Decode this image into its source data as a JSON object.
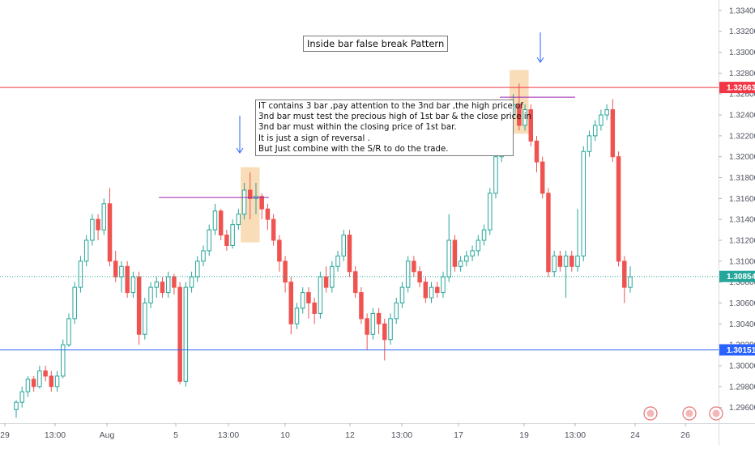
{
  "chart_data": {
    "type": "candlestick",
    "title": "Inside bar false break Pattern",
    "annotation_lines": [
      "IT contains 3 bar ,pay attention to the 3nd bar ,the high price of",
      "3nd bar must test the precious high of 1st bar & the close price in",
      "3nd bar must within the closing price of 1st bar.",
      "It is just a sign of reversal .",
      "But Just combine with the S/R to do the trade."
    ],
    "ylim": [
      1.2945,
      1.335
    ],
    "y_ticks": [
      "1.33400",
      "1.33200",
      "1.33000",
      "1.32800",
      "1.32600",
      "1.32400",
      "1.32200",
      "1.32000",
      "1.31800",
      "1.31600",
      "1.31400",
      "1.31200",
      "1.31000",
      "1.30800",
      "1.30600",
      "1.30400",
      "1.30200",
      "1.30000",
      "1.29800",
      "1.29600"
    ],
    "x_ticks": [
      "29",
      "13:00",
      "Aug",
      "5",
      "13:00",
      "10",
      "12",
      "13:00",
      "17",
      "19",
      "13:00",
      "24",
      "26"
    ],
    "price_levels": [
      {
        "label": "1.32663",
        "value": 1.32663,
        "color": "#f23645"
      },
      {
        "label": "1.30854",
        "value": 1.30854,
        "color": "#26a69a",
        "dotted": true
      },
      {
        "label": "1.30151",
        "value": 1.30151,
        "color": "#2962ff"
      }
    ],
    "colors": {
      "up": "#26a69a",
      "down": "#ef5350",
      "highlight": "#f7d9b0",
      "pattern_line": "#9c27b0",
      "arrow": "#2962ff"
    },
    "candles": [
      [
        1.2958,
        1.2965,
        1.295,
        1.2967
      ],
      [
        1.2965,
        1.2975,
        1.296,
        1.298
      ],
      [
        1.2975,
        1.2987,
        1.297,
        1.299
      ],
      [
        1.2987,
        1.298,
        1.2975,
        1.299
      ],
      [
        1.298,
        1.2995,
        1.2978,
        1.3
      ],
      [
        1.2995,
        1.299,
        1.2985,
        1.3
      ],
      [
        1.299,
        1.298,
        1.2975,
        1.2995
      ],
      [
        1.298,
        1.299,
        1.2975,
        1.2995
      ],
      [
        1.299,
        1.302,
        1.2988,
        1.3025
      ],
      [
        1.302,
        1.3045,
        1.3018,
        1.305
      ],
      [
        1.3045,
        1.3075,
        1.304,
        1.308
      ],
      [
        1.3075,
        1.31,
        1.307,
        1.3105
      ],
      [
        1.31,
        1.312,
        1.3095,
        1.3125
      ],
      [
        1.312,
        1.314,
        1.3115,
        1.3145
      ],
      [
        1.314,
        1.313,
        1.312,
        1.3145
      ],
      [
        1.313,
        1.3155,
        1.3125,
        1.316
      ],
      [
        1.3155,
        1.31,
        1.3095,
        1.317
      ],
      [
        1.31,
        1.3085,
        1.308,
        1.311
      ],
      [
        1.3085,
        1.3095,
        1.307,
        1.31
      ],
      [
        1.3095,
        1.307,
        1.3065,
        1.31
      ],
      [
        1.307,
        1.3085,
        1.3065,
        1.309
      ],
      [
        1.3085,
        1.303,
        1.302,
        1.309
      ],
      [
        1.303,
        1.306,
        1.3025,
        1.3065
      ],
      [
        1.306,
        1.3075,
        1.3055,
        1.308
      ],
      [
        1.3075,
        1.308,
        1.3065,
        1.3085
      ],
      [
        1.308,
        1.307,
        1.3065,
        1.3085
      ],
      [
        1.307,
        1.3085,
        1.3065,
        1.309
      ],
      [
        1.3085,
        1.3075,
        1.3068,
        1.3088
      ],
      [
        1.3075,
        1.2985,
        1.2982,
        1.308
      ],
      [
        1.2985,
        1.3075,
        1.298,
        1.308
      ],
      [
        1.3075,
        1.3085,
        1.307,
        1.309
      ],
      [
        1.3085,
        1.31,
        1.308,
        1.3105
      ],
      [
        1.31,
        1.311,
        1.3095,
        1.3115
      ],
      [
        1.311,
        1.313,
        1.3105,
        1.3135
      ],
      [
        1.313,
        1.3148,
        1.3125,
        1.3155
      ],
      [
        1.3148,
        1.3125,
        1.312,
        1.315
      ],
      [
        1.3125,
        1.3115,
        1.311,
        1.313
      ],
      [
        1.3115,
        1.3135,
        1.3112,
        1.314
      ],
      [
        1.3135,
        1.3145,
        1.313,
        1.315
      ],
      [
        1.3145,
        1.3168,
        1.314,
        1.3175
      ],
      [
        1.3168,
        1.316,
        1.314,
        1.3185
      ],
      [
        1.316,
        1.3162,
        1.3145,
        1.3175
      ],
      [
        1.3162,
        1.315,
        1.314,
        1.3165
      ],
      [
        1.315,
        1.314,
        1.313,
        1.3155
      ],
      [
        1.314,
        1.312,
        1.3115,
        1.3145
      ],
      [
        1.312,
        1.31,
        1.309,
        1.3125
      ],
      [
        1.31,
        1.308,
        1.307,
        1.3105
      ],
      [
        1.308,
        1.304,
        1.303,
        1.3085
      ],
      [
        1.304,
        1.3055,
        1.3035,
        1.306
      ],
      [
        1.3055,
        1.307,
        1.305,
        1.3075
      ],
      [
        1.307,
        1.306,
        1.3045,
        1.3075
      ],
      [
        1.306,
        1.305,
        1.304,
        1.3065
      ],
      [
        1.305,
        1.3085,
        1.3045,
        1.309
      ],
      [
        1.3085,
        1.3075,
        1.307,
        1.3095
      ],
      [
        1.3075,
        1.3095,
        1.307,
        1.31
      ],
      [
        1.3095,
        1.3105,
        1.309,
        1.311
      ],
      [
        1.3105,
        1.3125,
        1.31,
        1.313
      ],
      [
        1.3125,
        1.309,
        1.3085,
        1.313
      ],
      [
        1.309,
        1.307,
        1.3065,
        1.3095
      ],
      [
        1.307,
        1.3045,
        1.304,
        1.3075
      ],
      [
        1.3045,
        1.303,
        1.3015,
        1.305
      ],
      [
        1.303,
        1.305,
        1.3025,
        1.3055
      ],
      [
        1.305,
        1.304,
        1.303,
        1.3055
      ],
      [
        1.304,
        1.3025,
        1.3005,
        1.3045
      ],
      [
        1.3025,
        1.3045,
        1.302,
        1.305
      ],
      [
        1.3045,
        1.306,
        1.304,
        1.3065
      ],
      [
        1.306,
        1.3075,
        1.3055,
        1.308
      ],
      [
        1.3075,
        1.31,
        1.307,
        1.3105
      ],
      [
        1.31,
        1.309,
        1.3085,
        1.3105
      ],
      [
        1.309,
        1.308,
        1.3075,
        1.3095
      ],
      [
        1.308,
        1.3065,
        1.306,
        1.3085
      ],
      [
        1.3065,
        1.3075,
        1.306,
        1.308
      ],
      [
        1.3075,
        1.307,
        1.3065,
        1.308
      ],
      [
        1.307,
        1.3085,
        1.3065,
        1.309
      ],
      [
        1.3085,
        1.312,
        1.308,
        1.3145
      ],
      [
        1.312,
        1.3095,
        1.309,
        1.3125
      ],
      [
        1.3095,
        1.31,
        1.309,
        1.3105
      ],
      [
        1.31,
        1.3105,
        1.3095,
        1.311
      ],
      [
        1.3105,
        1.311,
        1.31,
        1.3115
      ],
      [
        1.311,
        1.312,
        1.3105,
        1.3125
      ],
      [
        1.312,
        1.313,
        1.3115,
        1.3135
      ],
      [
        1.313,
        1.3165,
        1.3125,
        1.317
      ],
      [
        1.3165,
        1.32,
        1.316,
        1.3205
      ],
      [
        1.32,
        1.3215,
        1.3195,
        1.322
      ],
      [
        1.3215,
        1.324,
        1.321,
        1.3245
      ],
      [
        1.324,
        1.325,
        1.3235,
        1.326
      ],
      [
        1.325,
        1.323,
        1.3225,
        1.327
      ],
      [
        1.323,
        1.3245,
        1.3225,
        1.325
      ],
      [
        1.3245,
        1.3215,
        1.321,
        1.325
      ],
      [
        1.3215,
        1.3195,
        1.3185,
        1.322
      ],
      [
        1.3195,
        1.3165,
        1.316,
        1.32
      ],
      [
        1.3165,
        1.309,
        1.3085,
        1.317
      ],
      [
        1.309,
        1.3105,
        1.3085,
        1.311
      ],
      [
        1.3105,
        1.3095,
        1.309,
        1.311
      ],
      [
        1.3095,
        1.3105,
        1.3065,
        1.311
      ],
      [
        1.3105,
        1.3095,
        1.309,
        1.311
      ],
      [
        1.3095,
        1.3105,
        1.309,
        1.315
      ],
      [
        1.3105,
        1.3205,
        1.31,
        1.321
      ],
      [
        1.3205,
        1.322,
        1.32,
        1.3225
      ],
      [
        1.322,
        1.323,
        1.3215,
        1.3235
      ],
      [
        1.323,
        1.324,
        1.3225,
        1.3245
      ],
      [
        1.324,
        1.3245,
        1.3235,
        1.325
      ],
      [
        1.3245,
        1.32,
        1.3195,
        1.3255
      ],
      [
        1.32,
        1.31,
        1.3095,
        1.3205
      ],
      [
        1.31,
        1.3075,
        1.306,
        1.3105
      ],
      [
        1.3075,
        1.3085,
        1.307,
        1.3095
      ]
    ]
  }
}
